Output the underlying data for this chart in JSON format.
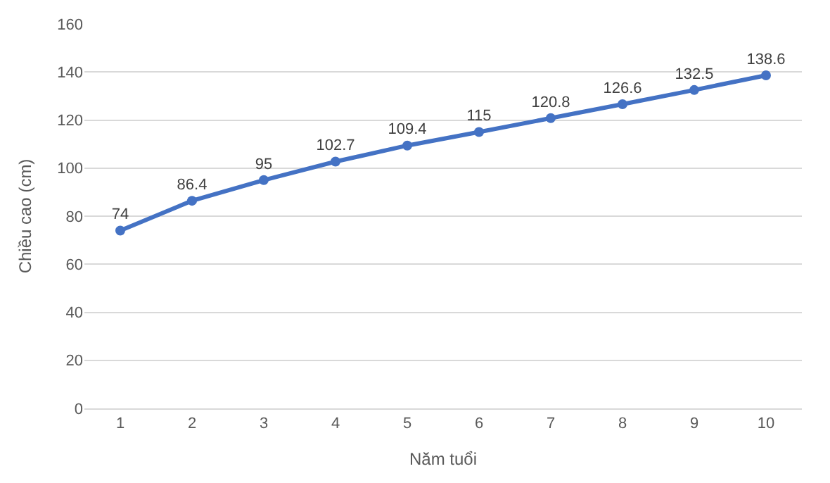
{
  "chart_data": {
    "type": "line",
    "xlabel": "Năm tuổi",
    "ylabel": "Chiều cao (cm)",
    "categories": [
      "1",
      "2",
      "3",
      "4",
      "5",
      "6",
      "7",
      "8",
      "9",
      "10"
    ],
    "series": [
      {
        "color": "#4472c4",
        "values": [
          74,
          86.4,
          95,
          102.7,
          109.4,
          115,
          120.8,
          126.6,
          132.5,
          138.6
        ]
      }
    ],
    "ylim": [
      0,
      160
    ],
    "yticks": [
      0,
      20,
      40,
      60,
      80,
      100,
      120,
      140,
      160
    ],
    "grid": "y",
    "marker": "circle",
    "line_style": "solid",
    "data_labels": true,
    "legend": false
  }
}
